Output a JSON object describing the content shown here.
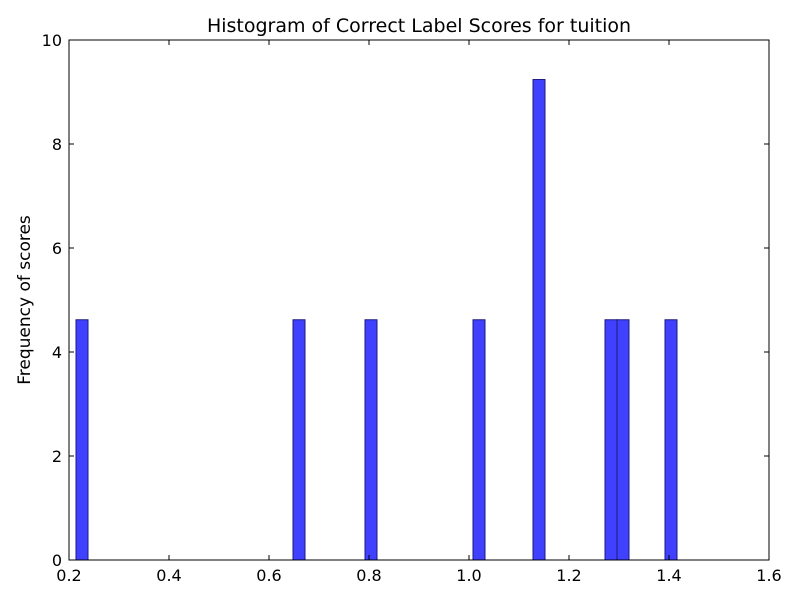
{
  "chart_data": {
    "type": "bar",
    "subtype": "histogram",
    "title": "Histogram of Correct Label Scores for tuition",
    "xlabel": "",
    "ylabel": "Frequency of scores",
    "xlim": [
      0.2,
      1.6
    ],
    "ylim": [
      0,
      10
    ],
    "x_ticks": [
      "0.2",
      "0.4",
      "0.6",
      "0.8",
      "1.0",
      "1.2",
      "1.4",
      "1.6"
    ],
    "y_ticks": [
      "0",
      "2",
      "4",
      "6",
      "8",
      "10"
    ],
    "bin_width": 0.024,
    "bars": [
      {
        "x": 0.226,
        "value": 4.62
      },
      {
        "x": 0.66,
        "value": 4.62
      },
      {
        "x": 0.804,
        "value": 4.62
      },
      {
        "x": 1.02,
        "value": 4.62
      },
      {
        "x": 1.14,
        "value": 9.24
      },
      {
        "x": 1.284,
        "value": 4.62
      },
      {
        "x": 1.308,
        "value": 4.62
      },
      {
        "x": 1.404,
        "value": 4.62
      }
    ],
    "grid": false,
    "colors": {
      "bar_fill": "#4040ff",
      "bar_edge": "#1a1a80",
      "axis": "#000000"
    }
  }
}
